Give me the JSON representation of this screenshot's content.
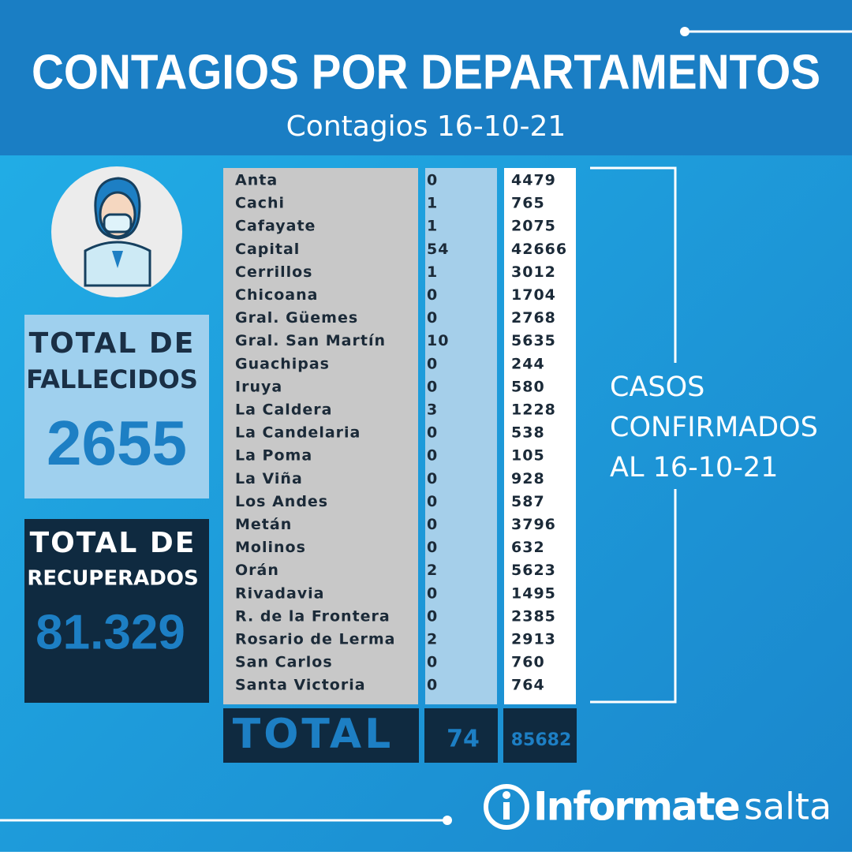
{
  "header": {
    "title": "CONTAGIOS POR DEPARTAMENTOS",
    "subtitle": "Contagios 16-10-21"
  },
  "fallecidos": {
    "label_1": "TOTAL DE",
    "label_2": "FALLECIDOS",
    "value": "2655"
  },
  "recuperados": {
    "label_1": "TOTAL DE",
    "label_2": "RECUPERADOS",
    "value": "81.329"
  },
  "table": {
    "rows": [
      [
        "Anta",
        "0",
        "4479"
      ],
      [
        "Cachi",
        "1",
        "765"
      ],
      [
        "Cafayate",
        "1",
        "2075"
      ],
      [
        "Capital",
        "54",
        "42666"
      ],
      [
        "Cerrillos",
        "1",
        "3012"
      ],
      [
        "Chicoana",
        "0",
        "1704"
      ],
      [
        "Gral. Güemes",
        "0",
        "2768"
      ],
      [
        "Gral. San Martín",
        "10",
        "5635"
      ],
      [
        "Guachipas",
        "0",
        "244"
      ],
      [
        "Iruya",
        "0",
        "580"
      ],
      [
        "La Caldera",
        "3",
        "1228"
      ],
      [
        "La Candelaria",
        "0",
        "538"
      ],
      [
        "La Poma",
        "0",
        "105"
      ],
      [
        "La Viña",
        "0",
        "928"
      ],
      [
        "Los Andes",
        "0",
        "587"
      ],
      [
        "Metán",
        "0",
        "3796"
      ],
      [
        "Molinos",
        "0",
        "632"
      ],
      [
        "Orán",
        "2",
        "5623"
      ],
      [
        "Rivadavia",
        "0",
        "1495"
      ],
      [
        "R. de la Frontera",
        "0",
        "2385"
      ],
      [
        "Rosario de Lerma",
        "2",
        "2913"
      ],
      [
        "San Carlos",
        "0",
        "760"
      ],
      [
        "Santa Victoria",
        "0",
        "764"
      ]
    ],
    "total": {
      "label": "TOTAL",
      "today": "74",
      "total": "85682"
    }
  },
  "note": {
    "lines": [
      "CASOS",
      "CONFIRMADOS",
      "AL 16-10-21"
    ]
  },
  "logo": {
    "brand": "Informate",
    "suffix": "salta"
  }
}
